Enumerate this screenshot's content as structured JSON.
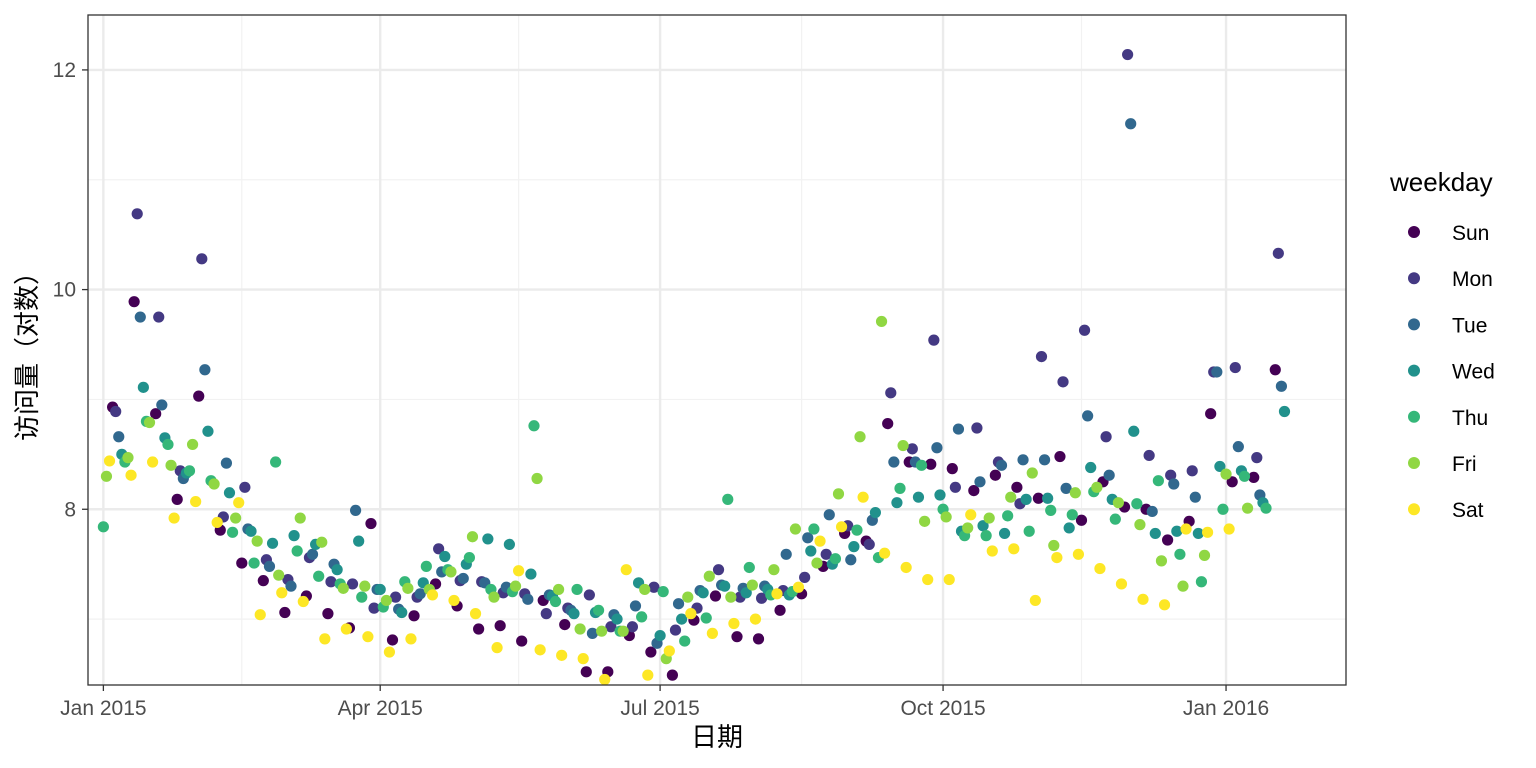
{
  "chart_data": {
    "type": "scatter",
    "title": "",
    "xlabel": "日期",
    "ylabel": "访问量（对数）",
    "x_type": "date",
    "xlim": [
      "2014-12-27",
      "2016-02-09"
    ],
    "ylim": [
      6.4,
      12.5
    ],
    "grid": true,
    "legend_position": "right",
    "x_ticks": [
      {
        "date": "2015-01-01",
        "label": "Jan 2015"
      },
      {
        "date": "2015-04-01",
        "label": "Apr 2015"
      },
      {
        "date": "2015-07-01",
        "label": "Jul 2015"
      },
      {
        "date": "2015-10-01",
        "label": "Oct 2015"
      },
      {
        "date": "2016-01-01",
        "label": "Jan 2016"
      }
    ],
    "x_minor_ticks": [
      "2015-02-15",
      "2015-05-16",
      "2015-08-16",
      "2015-11-15"
    ],
    "y_ticks": [
      8,
      10,
      12
    ],
    "y_minor_ticks": [
      7,
      9,
      11
    ],
    "legend": {
      "title": "weekday",
      "items": [
        {
          "label": "Sun",
          "color": "#440154"
        },
        {
          "label": "Mon",
          "color": "#443983"
        },
        {
          "label": "Tue",
          "color": "#31688e"
        },
        {
          "label": "Wed",
          "color": "#21918c"
        },
        {
          "label": "Thu",
          "color": "#35b779"
        },
        {
          "label": "Fri",
          "color": "#90d743"
        },
        {
          "label": "Sat",
          "color": "#fde725"
        }
      ]
    },
    "series": [
      {
        "name": "Sun",
        "start": "2015-01-04",
        "values": [
          8.93,
          9.89,
          8.87,
          8.09,
          9.03,
          7.81,
          7.51,
          7.35,
          7.06,
          7.21,
          7.05,
          6.92,
          7.87,
          6.81,
          7.03,
          7.32,
          7.12,
          6.91,
          6.94,
          6.8,
          7.17,
          6.95,
          6.52,
          6.52,
          6.85,
          6.7,
          6.49,
          6.99,
          7.21,
          6.84,
          6.82,
          7.08,
          7.23,
          7.48,
          7.78,
          7.71,
          8.78,
          8.43,
          8.41,
          8.37,
          8.17,
          8.31,
          8.2,
          8.1,
          8.48,
          7.9,
          8.25,
          8.02,
          8.0,
          7.72,
          7.89,
          8.87,
          8.25,
          8.29,
          9.27
        ]
      },
      {
        "name": "Mon",
        "start": "2015-01-05",
        "values": [
          8.89,
          10.69,
          9.75,
          8.35,
          10.28,
          7.93,
          8.2,
          7.54,
          7.36,
          7.56,
          7.34,
          7.32,
          7.1,
          7.2,
          7.2,
          7.64,
          7.35,
          7.34,
          7.24,
          7.23,
          7.05,
          7.1,
          7.22,
          6.93,
          6.93,
          7.29,
          6.9,
          7.1,
          7.45,
          7.2,
          7.19,
          7.26,
          7.38,
          7.59,
          7.85,
          7.68,
          9.06,
          8.55,
          9.54,
          8.2,
          8.74,
          8.43,
          8.05,
          9.39,
          9.16,
          9.63,
          8.66,
          12.14,
          8.49,
          8.31,
          8.35,
          9.25,
          9.29,
          8.47,
          10.33
        ]
      },
      {
        "name": "Tue",
        "start": "2015-01-06",
        "values": [
          8.66,
          9.75,
          8.95,
          8.28,
          9.27,
          8.42,
          7.82,
          7.48,
          7.3,
          7.59,
          7.5,
          7.99,
          7.27,
          7.09,
          7.23,
          7.43,
          7.37,
          7.33,
          7.29,
          7.18,
          7.22,
          7.08,
          6.87,
          7.04,
          7.12,
          6.78,
          7.14,
          7.26,
          7.31,
          7.28,
          7.3,
          7.59,
          7.74,
          7.95,
          7.54,
          7.9,
          8.43,
          8.43,
          8.56,
          8.73,
          8.25,
          8.4,
          8.45,
          8.45,
          8.19,
          8.85,
          8.31,
          11.51,
          7.98,
          8.23,
          8.11,
          9.25,
          8.57,
          8.13,
          9.12
        ]
      },
      {
        "name": "Wed",
        "start": "2015-01-07",
        "values": [
          8.5,
          9.11,
          8.65,
          8.33,
          8.71,
          8.15,
          7.8,
          7.69,
          7.76,
          7.68,
          7.45,
          7.71,
          7.27,
          7.06,
          7.33,
          7.57,
          7.5,
          7.73,
          7.68,
          7.41,
          7.21,
          7.05,
          7.06,
          7.0,
          7.33,
          6.85,
          7.0,
          7.24,
          7.3,
          7.24,
          7.27,
          7.22,
          7.62,
          7.5,
          7.66,
          7.97,
          8.06,
          8.11,
          8.13,
          7.8,
          7.85,
          7.78,
          8.09,
          8.1,
          7.83,
          8.38,
          8.09,
          8.71,
          7.78,
          7.8,
          7.78,
          8.39,
          8.35,
          8.06,
          8.89
        ]
      },
      {
        "name": "Thu",
        "start": "2015-01-01",
        "values": [
          7.84,
          8.43,
          8.8,
          8.59,
          8.35,
          8.26,
          7.79,
          7.51,
          8.43,
          7.62,
          7.39,
          7.32,
          7.2,
          7.11,
          7.34,
          7.48,
          7.45,
          7.56,
          7.27,
          7.25,
          8.76,
          7.16,
          7.27,
          7.08,
          6.89,
          7.02,
          7.25,
          6.8,
          7.01,
          8.09,
          7.47,
          7.22,
          7.25,
          7.82,
          7.55,
          7.81,
          7.56,
          8.19,
          8.4,
          8.0,
          7.76,
          7.76,
          7.94,
          7.8,
          7.99,
          7.95,
          8.16,
          7.91,
          8.05,
          8.26,
          7.59,
          7.34,
          8.0,
          8.3,
          8.01
        ]
      },
      {
        "name": "Fri",
        "start": "2015-01-02",
        "values": [
          8.3,
          8.47,
          8.79,
          8.4,
          8.59,
          8.23,
          7.92,
          7.71,
          7.4,
          7.92,
          7.7,
          7.28,
          7.3,
          7.17,
          7.28,
          7.27,
          7.43,
          7.75,
          7.2,
          7.3,
          8.28,
          7.27,
          6.91,
          6.89,
          6.89,
          7.27,
          6.64,
          7.2,
          7.39,
          7.2,
          7.31,
          7.45,
          7.82,
          7.51,
          8.14,
          8.66,
          9.71,
          8.58,
          7.89,
          7.93,
          7.83,
          7.92,
          8.11,
          8.33,
          7.67,
          8.15,
          8.2,
          8.06,
          7.86,
          7.53,
          7.3,
          7.58,
          8.32,
          8.01
        ]
      },
      {
        "name": "Sat",
        "start": "2015-01-03",
        "values": [
          8.44,
          8.31,
          8.43,
          7.92,
          8.07,
          7.88,
          8.06,
          7.04,
          7.24,
          7.16,
          6.82,
          6.91,
          6.84,
          6.7,
          6.82,
          7.22,
          7.17,
          7.05,
          6.74,
          7.44,
          6.72,
          6.67,
          6.64,
          6.45,
          7.45,
          6.49,
          6.71,
          7.05,
          6.87,
          6.96,
          7.0,
          7.23,
          7.29,
          7.71,
          7.84,
          8.11,
          7.6,
          7.47,
          7.36,
          7.36,
          7.95,
          7.62,
          7.64,
          7.17,
          7.56,
          7.59,
          7.46,
          7.32,
          7.18,
          7.13,
          7.82,
          7.79,
          7.82
        ]
      }
    ]
  }
}
